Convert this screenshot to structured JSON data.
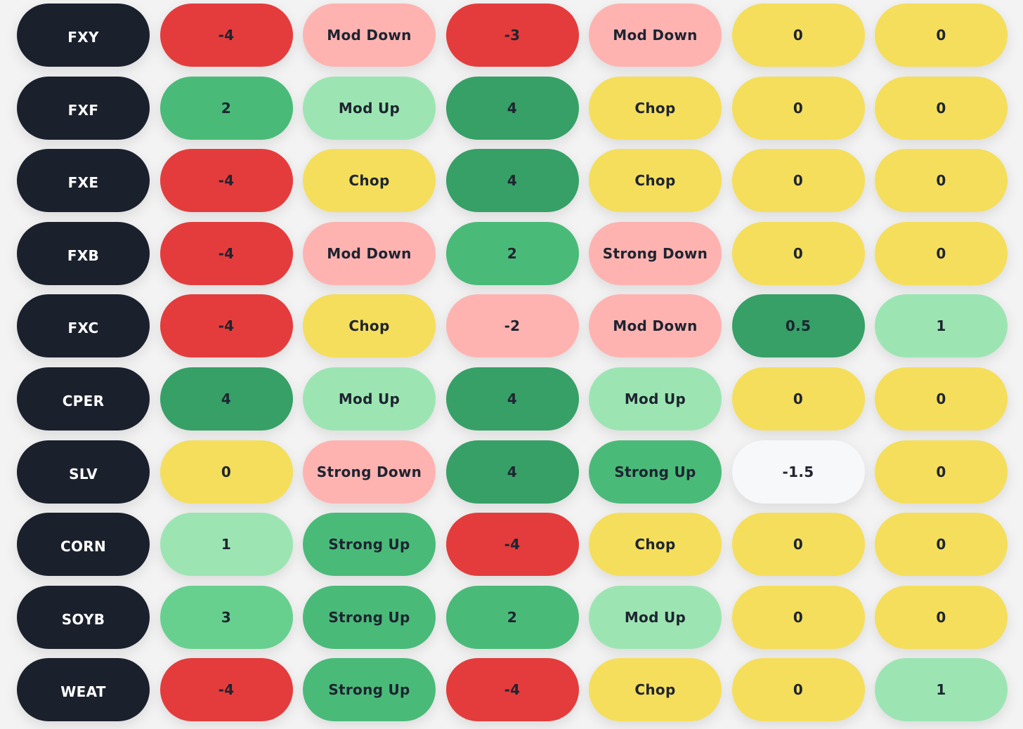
{
  "colors": {
    "ticker_bg": "#1b202d",
    "red": "#e43c3c",
    "pink": "#feb3b1",
    "yellow": "#f5de5b",
    "lightgreen": "#9ce5b3",
    "green": "#4aba79",
    "midgreen": "#67d08e",
    "darkgreen": "#36a067",
    "white": "#f7f8fa"
  },
  "rows": [
    {
      "ticker": "FXY",
      "cells": [
        {
          "text": "-4",
          "color": "red"
        },
        {
          "text": "Mod Down",
          "color": "pink"
        },
        {
          "text": "-3",
          "color": "red"
        },
        {
          "text": "Mod Down",
          "color": "pink"
        },
        {
          "text": "0",
          "color": "yellow"
        },
        {
          "text": "0",
          "color": "yellow"
        }
      ]
    },
    {
      "ticker": "FXF",
      "cells": [
        {
          "text": "2",
          "color": "green"
        },
        {
          "text": "Mod Up",
          "color": "lightgreen"
        },
        {
          "text": "4",
          "color": "darkgreen"
        },
        {
          "text": "Chop",
          "color": "yellow"
        },
        {
          "text": "0",
          "color": "yellow"
        },
        {
          "text": "0",
          "color": "yellow"
        }
      ]
    },
    {
      "ticker": "FXE",
      "cells": [
        {
          "text": "-4",
          "color": "red"
        },
        {
          "text": "Chop",
          "color": "yellow"
        },
        {
          "text": "4",
          "color": "darkgreen"
        },
        {
          "text": "Chop",
          "color": "yellow"
        },
        {
          "text": "0",
          "color": "yellow"
        },
        {
          "text": "0",
          "color": "yellow"
        }
      ]
    },
    {
      "ticker": "FXB",
      "cells": [
        {
          "text": "-4",
          "color": "red"
        },
        {
          "text": "Mod Down",
          "color": "pink"
        },
        {
          "text": "2",
          "color": "green"
        },
        {
          "text": "Strong Down",
          "color": "pink"
        },
        {
          "text": "0",
          "color": "yellow"
        },
        {
          "text": "0",
          "color": "yellow"
        }
      ]
    },
    {
      "ticker": "FXC",
      "cells": [
        {
          "text": "-4",
          "color": "red"
        },
        {
          "text": "Chop",
          "color": "yellow"
        },
        {
          "text": "-2",
          "color": "pink"
        },
        {
          "text": "Mod Down",
          "color": "pink"
        },
        {
          "text": "0.5",
          "color": "darkgreen"
        },
        {
          "text": "1",
          "color": "lightgreen"
        }
      ]
    },
    {
      "ticker": "CPER",
      "cells": [
        {
          "text": "4",
          "color": "darkgreen"
        },
        {
          "text": "Mod Up",
          "color": "lightgreen"
        },
        {
          "text": "4",
          "color": "darkgreen"
        },
        {
          "text": "Mod Up",
          "color": "lightgreen"
        },
        {
          "text": "0",
          "color": "yellow"
        },
        {
          "text": "0",
          "color": "yellow"
        }
      ]
    },
    {
      "ticker": "SLV",
      "cells": [
        {
          "text": "0",
          "color": "yellow"
        },
        {
          "text": "Strong Down",
          "color": "pink"
        },
        {
          "text": "4",
          "color": "darkgreen"
        },
        {
          "text": "Strong Up",
          "color": "green"
        },
        {
          "text": "-1.5",
          "color": "white"
        },
        {
          "text": "0",
          "color": "yellow"
        }
      ]
    },
    {
      "ticker": "CORN",
      "cells": [
        {
          "text": "1",
          "color": "lightgreen"
        },
        {
          "text": "Strong Up",
          "color": "green"
        },
        {
          "text": "-4",
          "color": "red"
        },
        {
          "text": "Chop",
          "color": "yellow"
        },
        {
          "text": "0",
          "color": "yellow"
        },
        {
          "text": "0",
          "color": "yellow"
        }
      ]
    },
    {
      "ticker": "SOYB",
      "cells": [
        {
          "text": "3",
          "color": "midgreen"
        },
        {
          "text": "Strong Up",
          "color": "green"
        },
        {
          "text": "2",
          "color": "green"
        },
        {
          "text": "Mod Up",
          "color": "lightgreen"
        },
        {
          "text": "0",
          "color": "yellow"
        },
        {
          "text": "0",
          "color": "yellow"
        }
      ]
    },
    {
      "ticker": "WEAT",
      "cells": [
        {
          "text": "-4",
          "color": "red"
        },
        {
          "text": "Strong Up",
          "color": "green"
        },
        {
          "text": "-4",
          "color": "red"
        },
        {
          "text": "Chop",
          "color": "yellow"
        },
        {
          "text": "0",
          "color": "yellow"
        },
        {
          "text": "1",
          "color": "lightgreen"
        }
      ]
    }
  ]
}
